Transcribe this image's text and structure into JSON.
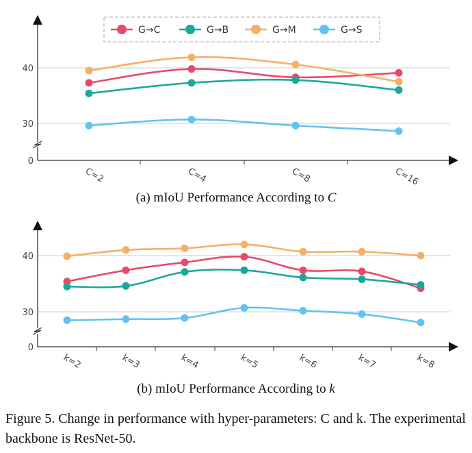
{
  "colors": {
    "G→C": "#e8496a",
    "G→B": "#1aa89e",
    "G→M": "#f5b066",
    "G→S": "#62c3f0"
  },
  "chart_data": [
    {
      "type": "line",
      "title": "(a) mIoU Performance According to C",
      "categories": [
        "C=2",
        "C=4",
        "C=8",
        "C=16"
      ],
      "yticks": [
        "0",
        "30",
        "40"
      ],
      "y_axis_break": true,
      "grid": true,
      "legend": "top",
      "series": [
        {
          "name": "G→C",
          "values": [
            37.3,
            39.8,
            38.3,
            39.1
          ]
        },
        {
          "name": "G→B",
          "values": [
            35.4,
            37.3,
            37.8,
            36.0
          ]
        },
        {
          "name": "G→M",
          "values": [
            39.5,
            41.9,
            40.6,
            37.5
          ]
        },
        {
          "name": "G→S",
          "values": [
            29.6,
            30.7,
            29.6,
            28.6
          ]
        }
      ]
    },
    {
      "type": "line",
      "title": "(b) mIoU Performance According to k",
      "categories": [
        "k=2",
        "k=3",
        "k=4",
        "k=5",
        "k=6",
        "k=7",
        "k=8"
      ],
      "yticks": [
        "0",
        "30",
        "40"
      ],
      "y_axis_break": true,
      "grid": true,
      "series": [
        {
          "name": "G→C",
          "values": [
            35.4,
            37.4,
            38.8,
            39.8,
            37.4,
            37.2,
            34.2
          ]
        },
        {
          "name": "G→B",
          "values": [
            34.5,
            34.6,
            37.1,
            37.4,
            36.1,
            35.8,
            34.8
          ]
        },
        {
          "name": "G→M",
          "values": [
            39.9,
            41.0,
            41.3,
            42.0,
            40.7,
            40.7,
            40.0
          ]
        },
        {
          "name": "G→S",
          "values": [
            28.5,
            28.7,
            28.9,
            30.7,
            30.2,
            29.6,
            28.1
          ]
        }
      ]
    }
  ],
  "captions": {
    "a_prefix": "(a) mIoU Performance According to ",
    "a_var": "C",
    "b_prefix": "(b) mIoU Performance According to ",
    "b_var": "k",
    "figure": "Figure 5.  Change in performance with hyper-parameters: C and k. The experimental backbone is ResNet-50."
  }
}
